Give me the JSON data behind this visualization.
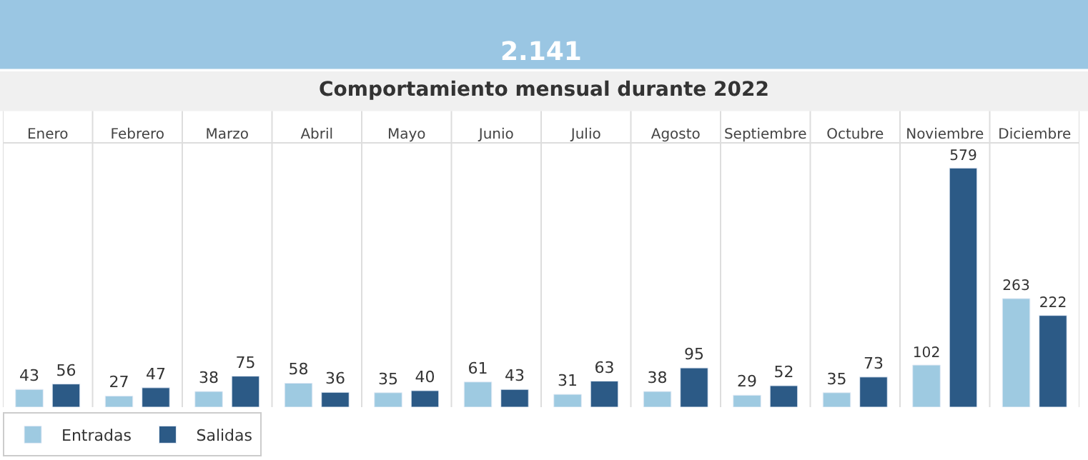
{
  "chart_data": {
    "type": "bar",
    "title": "Comportamiento mensual durante 2022",
    "annotations": [
      "2.141"
    ],
    "categories": [
      "Enero",
      "Febrero",
      "Marzo",
      "Abril",
      "Mayo",
      "Junio",
      "Julio",
      "Agosto",
      "Septiembre",
      "Octubre",
      "Noviembre",
      "Diciembre"
    ],
    "series": [
      {
        "name": "Entradas",
        "color": "#9ecae1",
        "values": [
          43,
          27,
          38,
          58,
          35,
          61,
          31,
          38,
          29,
          35,
          102,
          263
        ]
      },
      {
        "name": "Salidas",
        "color": "#2c5a86",
        "values": [
          56,
          47,
          75,
          36,
          40,
          43,
          63,
          95,
          52,
          73,
          579,
          222
        ]
      }
    ],
    "ylim": [
      0,
      640
    ],
    "data_labels": true,
    "legend": "bottom left",
    "tick_labels": "x",
    "grid": false
  }
}
